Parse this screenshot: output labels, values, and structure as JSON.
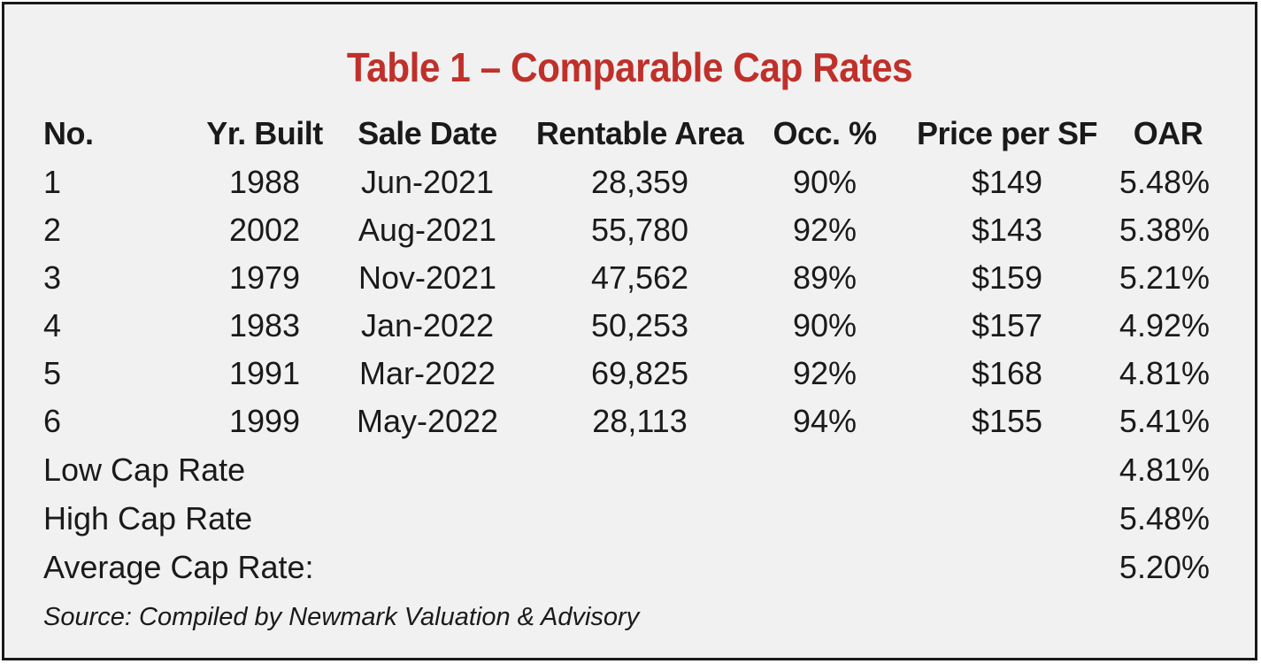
{
  "title": "Table 1 – Comparable Cap Rates",
  "columns": [
    "No.",
    "Yr. Built",
    "Sale Date",
    "Rentable Area",
    "Occ. %",
    "Price per SF",
    "OAR"
  ],
  "rows": [
    {
      "no": "1",
      "yr": "1988",
      "sale": "Jun-2021",
      "area": "28,359",
      "occ": "90%",
      "price": "$149",
      "oar": "5.48%"
    },
    {
      "no": "2",
      "yr": "2002",
      "sale": "Aug-2021",
      "area": "55,780",
      "occ": "92%",
      "price": "$143",
      "oar": "5.38%"
    },
    {
      "no": "3",
      "yr": "1979",
      "sale": "Nov-2021",
      "area": "47,562",
      "occ": "89%",
      "price": "$159",
      "oar": "5.21%"
    },
    {
      "no": "4",
      "yr": "1983",
      "sale": "Jan-2022",
      "area": "50,253",
      "occ": "90%",
      "price": "$157",
      "oar": "4.92%"
    },
    {
      "no": "5",
      "yr": "1991",
      "sale": "Mar-2022",
      "area": "69,825",
      "occ": "92%",
      "price": "$168",
      "oar": "4.81%"
    },
    {
      "no": "6",
      "yr": "1999",
      "sale": "May-2022",
      "area": "28,113",
      "occ": "94%",
      "price": "$155",
      "oar": "5.41%"
    }
  ],
  "summary": [
    {
      "label": "Low Cap Rate",
      "value": "4.81%"
    },
    {
      "label": "High Cap Rate",
      "value": "5.48%"
    },
    {
      "label": "Average Cap Rate:",
      "value": "5.20%"
    }
  ],
  "source": "Source: Compiled by Newmark Valuation & Advisory",
  "colors": {
    "title": "#c0302a",
    "background": "#f1f1f1",
    "border": "#1a1a1a"
  }
}
